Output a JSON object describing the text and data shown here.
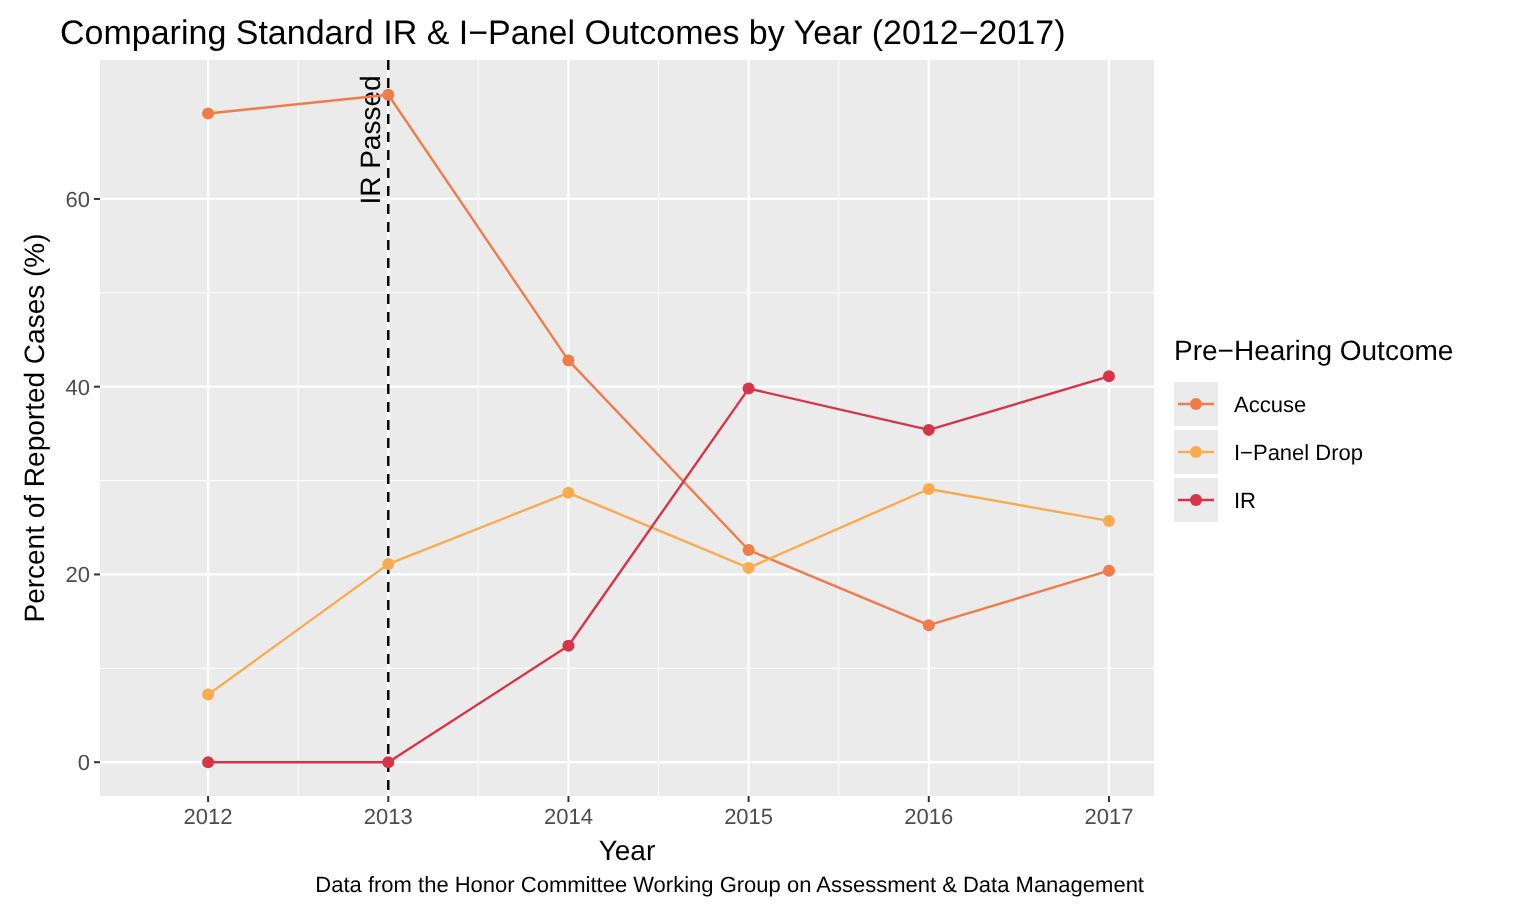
{
  "chart_data": {
    "type": "line",
    "title": "Comparing Standard IR & I−Panel Outcomes by Year (2012−2017)",
    "xlabel": "Year",
    "ylabel": "Percent of Reported Cases (%)",
    "legend_title": "Pre−Hearing Outcome",
    "x": [
      2012,
      2013,
      2014,
      2015,
      2016,
      2017
    ],
    "series": [
      {
        "name": "Accuse",
        "color": "#f07c4a",
        "values": [
          69.1,
          71.1,
          42.8,
          22.6,
          14.6,
          20.4
        ]
      },
      {
        "name": "I−Panel Drop",
        "color": "#f9ab4e",
        "values": [
          7.2,
          21.1,
          28.7,
          20.7,
          29.1,
          25.7
        ]
      },
      {
        "name": "IR",
        "color": "#d7344a",
        "values": [
          0,
          0,
          12.4,
          39.8,
          35.4,
          41.1
        ]
      }
    ],
    "xlim": [
      2011.4,
      2017.25
    ],
    "xticks": [
      2012,
      2013,
      2014,
      2015,
      2016,
      2017
    ],
    "ylim": [
      -3.6,
      74.8
    ],
    "yticks": [
      0,
      20,
      40,
      60
    ],
    "grid": true,
    "legend": "right",
    "marker": "circle",
    "line_style": "solid",
    "ref_lines": [
      {
        "axis": "x",
        "value": 2013,
        "label": "IR Passed",
        "color": "#000000",
        "line_style": "dashed"
      }
    ],
    "annotations": [
      "Data from the Honor Committee Working Group on Assessment & Data Management"
    ]
  }
}
